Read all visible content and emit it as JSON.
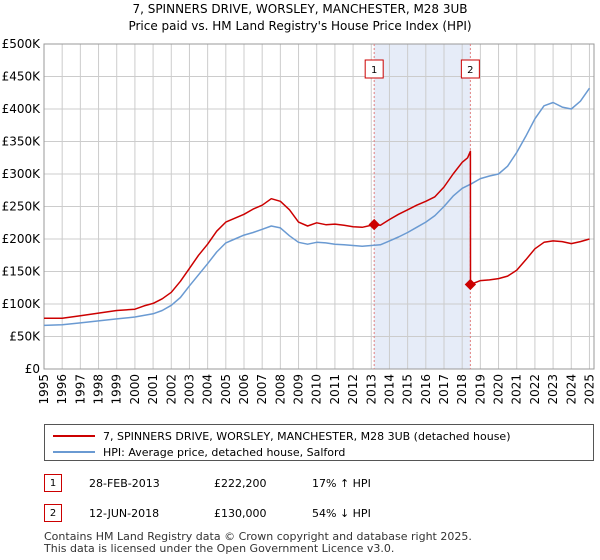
{
  "colors": {
    "price_line": "#cc0000",
    "hpi_line": "#6a9ad2",
    "shade": "#e6ecf8",
    "grid": "#cccccc",
    "vline": "#e08080"
  },
  "chart_data": {
    "type": "line",
    "title": "7, SPINNERS DRIVE, WORSLEY, MANCHESTER, M28 3UB",
    "subtitle": "Price paid vs. HM Land Registry's House Price Index (HPI)",
    "xlabel": "",
    "ylabel": "",
    "xlim": [
      1995,
      2025.25
    ],
    "ylim": [
      0,
      500000
    ],
    "x_ticks": [
      "1995",
      "1996",
      "1997",
      "1998",
      "1999",
      "2000",
      "2001",
      "2002",
      "2003",
      "2004",
      "2005",
      "2006",
      "2007",
      "2008",
      "2009",
      "2010",
      "2011",
      "2012",
      "2013",
      "2014",
      "2015",
      "2016",
      "2017",
      "2018",
      "2019",
      "2020",
      "2021",
      "2022",
      "2023",
      "2024",
      "2025"
    ],
    "y_ticks": [
      {
        "value": 0,
        "label": "£0"
      },
      {
        "value": 50000,
        "label": "£50K"
      },
      {
        "value": 100000,
        "label": "£100K"
      },
      {
        "value": 150000,
        "label": "£150K"
      },
      {
        "value": 200000,
        "label": "£200K"
      },
      {
        "value": 250000,
        "label": "£250K"
      },
      {
        "value": 300000,
        "label": "£300K"
      },
      {
        "value": 350000,
        "label": "£350K"
      },
      {
        "value": 400000,
        "label": "£400K"
      },
      {
        "value": 450000,
        "label": "£450K"
      },
      {
        "value": 500000,
        "label": "£500K"
      }
    ],
    "shaded_region": [
      2013.16,
      2018.45
    ],
    "series": [
      {
        "name": "7, SPINNERS DRIVE, WORSLEY, MANCHESTER, M28 3UB (detached house)",
        "color": "#cc0000",
        "points": [
          [
            1995.0,
            78000
          ],
          [
            1996.0,
            78000
          ],
          [
            1997.0,
            82000
          ],
          [
            1998.0,
            86000
          ],
          [
            1999.0,
            90000
          ],
          [
            2000.0,
            92000
          ],
          [
            2000.5,
            97000
          ],
          [
            2001.0,
            101000
          ],
          [
            2001.5,
            108000
          ],
          [
            2002.0,
            118000
          ],
          [
            2002.5,
            135000
          ],
          [
            2003.0,
            155000
          ],
          [
            2003.5,
            175000
          ],
          [
            2004.0,
            192000
          ],
          [
            2004.5,
            212000
          ],
          [
            2005.0,
            226000
          ],
          [
            2005.5,
            232000
          ],
          [
            2006.0,
            238000
          ],
          [
            2006.5,
            246000
          ],
          [
            2007.0,
            252000
          ],
          [
            2007.5,
            262000
          ],
          [
            2008.0,
            258000
          ],
          [
            2008.5,
            245000
          ],
          [
            2009.0,
            226000
          ],
          [
            2009.5,
            220000
          ],
          [
            2010.0,
            225000
          ],
          [
            2010.5,
            222000
          ],
          [
            2011.0,
            223000
          ],
          [
            2011.5,
            221000
          ],
          [
            2012.0,
            219000
          ],
          [
            2012.5,
            218000
          ],
          [
            2013.16,
            222200
          ],
          [
            2013.5,
            221000
          ],
          [
            2014.0,
            230000
          ],
          [
            2014.5,
            238000
          ],
          [
            2015.0,
            245000
          ],
          [
            2015.5,
            252000
          ],
          [
            2016.0,
            258000
          ],
          [
            2016.5,
            265000
          ],
          [
            2017.0,
            280000
          ],
          [
            2017.5,
            300000
          ],
          [
            2018.0,
            318000
          ],
          [
            2018.3,
            325000
          ],
          [
            2018.45,
            335000
          ],
          [
            2018.46,
            130000
          ],
          [
            2019.0,
            136000
          ],
          [
            2019.5,
            137000
          ],
          [
            2020.0,
            139000
          ],
          [
            2020.5,
            143000
          ],
          [
            2021.0,
            152000
          ],
          [
            2021.5,
            168000
          ],
          [
            2022.0,
            185000
          ],
          [
            2022.5,
            195000
          ],
          [
            2023.0,
            197000
          ],
          [
            2023.5,
            196000
          ],
          [
            2024.0,
            193000
          ],
          [
            2024.5,
            196000
          ],
          [
            2025.0,
            200000
          ]
        ]
      },
      {
        "name": "HPI: Average price, detached house, Salford",
        "color": "#6a9ad2",
        "points": [
          [
            1995.0,
            67000
          ],
          [
            1996.0,
            68000
          ],
          [
            1997.0,
            71000
          ],
          [
            1998.0,
            74000
          ],
          [
            1999.0,
            77000
          ],
          [
            2000.0,
            80000
          ],
          [
            2001.0,
            85000
          ],
          [
            2001.5,
            90000
          ],
          [
            2002.0,
            98000
          ],
          [
            2002.5,
            110000
          ],
          [
            2003.0,
            128000
          ],
          [
            2003.5,
            145000
          ],
          [
            2004.0,
            162000
          ],
          [
            2004.5,
            180000
          ],
          [
            2005.0,
            194000
          ],
          [
            2005.5,
            200000
          ],
          [
            2006.0,
            206000
          ],
          [
            2006.5,
            210000
          ],
          [
            2007.0,
            215000
          ],
          [
            2007.5,
            220000
          ],
          [
            2008.0,
            217000
          ],
          [
            2008.5,
            205000
          ],
          [
            2009.0,
            195000
          ],
          [
            2009.5,
            192000
          ],
          [
            2010.0,
            195000
          ],
          [
            2010.5,
            194000
          ],
          [
            2011.0,
            192000
          ],
          [
            2011.5,
            191000
          ],
          [
            2012.0,
            190000
          ],
          [
            2012.5,
            189000
          ],
          [
            2013.0,
            190000
          ],
          [
            2013.5,
            191000
          ],
          [
            2014.0,
            197000
          ],
          [
            2014.5,
            203000
          ],
          [
            2015.0,
            210000
          ],
          [
            2015.5,
            218000
          ],
          [
            2016.0,
            226000
          ],
          [
            2016.5,
            236000
          ],
          [
            2017.0,
            250000
          ],
          [
            2017.5,
            266000
          ],
          [
            2018.0,
            278000
          ],
          [
            2018.5,
            285000
          ],
          [
            2019.0,
            293000
          ],
          [
            2019.5,
            297000
          ],
          [
            2020.0,
            300000
          ],
          [
            2020.5,
            312000
          ],
          [
            2021.0,
            333000
          ],
          [
            2021.5,
            358000
          ],
          [
            2022.0,
            385000
          ],
          [
            2022.5,
            405000
          ],
          [
            2023.0,
            410000
          ],
          [
            2023.5,
            403000
          ],
          [
            2024.0,
            400000
          ],
          [
            2024.5,
            412000
          ],
          [
            2025.0,
            432000
          ]
        ]
      }
    ],
    "markers": [
      {
        "label": "1",
        "x": 2013.16,
        "y": 222200
      },
      {
        "label": "2",
        "x": 2018.45,
        "y": 130000
      }
    ]
  },
  "legend": {
    "price_label": "7, SPINNERS DRIVE, WORSLEY, MANCHESTER, M28 3UB (detached house)",
    "hpi_label": "HPI: Average price, detached house, Salford"
  },
  "transactions": [
    {
      "num": "1",
      "date": "28-FEB-2013",
      "price": "£222,200",
      "hpi": "17% ↑ HPI"
    },
    {
      "num": "2",
      "date": "12-JUN-2018",
      "price": "£130,000",
      "hpi": "54% ↓ HPI"
    }
  ],
  "footer": {
    "line1": "Contains HM Land Registry data © Crown copyright and database right 2025.",
    "line2": "This data is licensed under the Open Government Licence v3.0."
  }
}
